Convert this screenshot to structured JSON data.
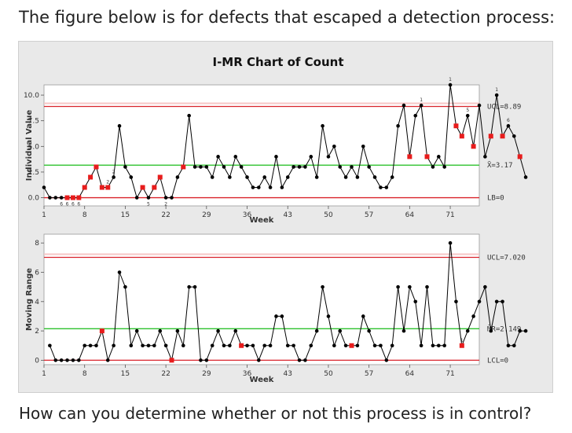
{
  "question": {
    "intro": "The figure below is for defects that escaped a detection process:",
    "prompt": "How can you determine whether or not this process is in control?"
  },
  "colors": {
    "background": "#e9e9e9",
    "plot_area": "#ffffff",
    "control_limit": "#d9232b",
    "center_line": "#2ec22e",
    "point": "#000000",
    "flagged_point": "#e81c1c",
    "limit_band": "#f7c6c6"
  },
  "chart_data": {
    "type": "line",
    "title": "I-MR Chart of Count",
    "xlabel": "Week",
    "x_ticks": [
      1,
      8,
      15,
      22,
      29,
      36,
      43,
      50,
      57,
      64,
      71
    ],
    "x_range": [
      1,
      76
    ],
    "panels": [
      {
        "name": "individuals",
        "ylabel": "Individual Value",
        "y_ticks": [
          "0.0",
          "2.5",
          "5.0",
          "7.5",
          "10.0"
        ],
        "ylim": [
          -0.8,
          11.0
        ],
        "ucl": 8.89,
        "center": 3.17,
        "lcl": 0,
        "ucl_label": "UCL=8.89",
        "center_label": "X̄=3.17",
        "lcl_label": "LB=0",
        "values": [
          1,
          0,
          0,
          0,
          0,
          0,
          0,
          1,
          2,
          3,
          1,
          1,
          2,
          7,
          3,
          2,
          0,
          1,
          0,
          1,
          2,
          0,
          0,
          2,
          3,
          8,
          3,
          3,
          3,
          2,
          4,
          3,
          2,
          4,
          3,
          2,
          1,
          1,
          2,
          1,
          4,
          1,
          2,
          3,
          3,
          3,
          4,
          2,
          7,
          4,
          5,
          3,
          2,
          3,
          2,
          5,
          3,
          2,
          1,
          1,
          2,
          7,
          9,
          4,
          8,
          9,
          4,
          3,
          4,
          3,
          11,
          7,
          6,
          8,
          5,
          9,
          4,
          6,
          10,
          6,
          7,
          6,
          4,
          2
        ],
        "flagged": [
          4,
          5,
          6,
          7,
          8,
          9,
          10,
          11,
          17,
          19,
          20,
          24,
          63,
          66,
          71,
          72,
          74,
          77,
          79,
          82
        ],
        "flag_labels": [
          {
            "index": 3,
            "label": "6"
          },
          {
            "index": 4,
            "label": "6"
          },
          {
            "index": 5,
            "label": "6"
          },
          {
            "index": 6,
            "label": "6"
          },
          {
            "index": 11,
            "label": "2"
          },
          {
            "index": 12,
            "label": "2"
          },
          {
            "index": 18,
            "label": "5"
          },
          {
            "index": 21,
            "label": "2"
          },
          {
            "index": 65,
            "label": "1"
          },
          {
            "index": 70,
            "label": "1"
          },
          {
            "index": 73,
            "label": "5"
          },
          {
            "index": 78,
            "label": "1"
          },
          {
            "index": 80,
            "label": "6"
          }
        ]
      },
      {
        "name": "moving_range",
        "ylabel": "Moving Range",
        "y_ticks": [
          "0",
          "2",
          "4",
          "6",
          "8"
        ],
        "ylim": [
          -0.3,
          8.6
        ],
        "ucl": 7.02,
        "center": 2.149,
        "lcl": 0,
        "ucl_label": "UCL=7.020",
        "center_label": "M̄R=2.149",
        "lcl_label": "LCL=0",
        "values": [
          null,
          1,
          0,
          0,
          0,
          0,
          0,
          1,
          1,
          1,
          2,
          0,
          1,
          6,
          5,
          1,
          2,
          1,
          1,
          1,
          2,
          1,
          0,
          2,
          1,
          5,
          5,
          0,
          0,
          1,
          2,
          1,
          1,
          2,
          1,
          1,
          1,
          0,
          1,
          1,
          3,
          3,
          1,
          1,
          0,
          0,
          1,
          2,
          5,
          3,
          1,
          2,
          1,
          1,
          1,
          3,
          2,
          1,
          1,
          0,
          1,
          5,
          2,
          5,
          4,
          1,
          5,
          1,
          1,
          1,
          8,
          4,
          1,
          2,
          3,
          4,
          5,
          2,
          4,
          4,
          1,
          1,
          2,
          2
        ],
        "flagged": [
          10,
          22,
          34,
          53,
          72
        ],
        "flag_labels": [
          {
            "index": 72,
            "label": "1"
          }
        ]
      }
    ]
  }
}
